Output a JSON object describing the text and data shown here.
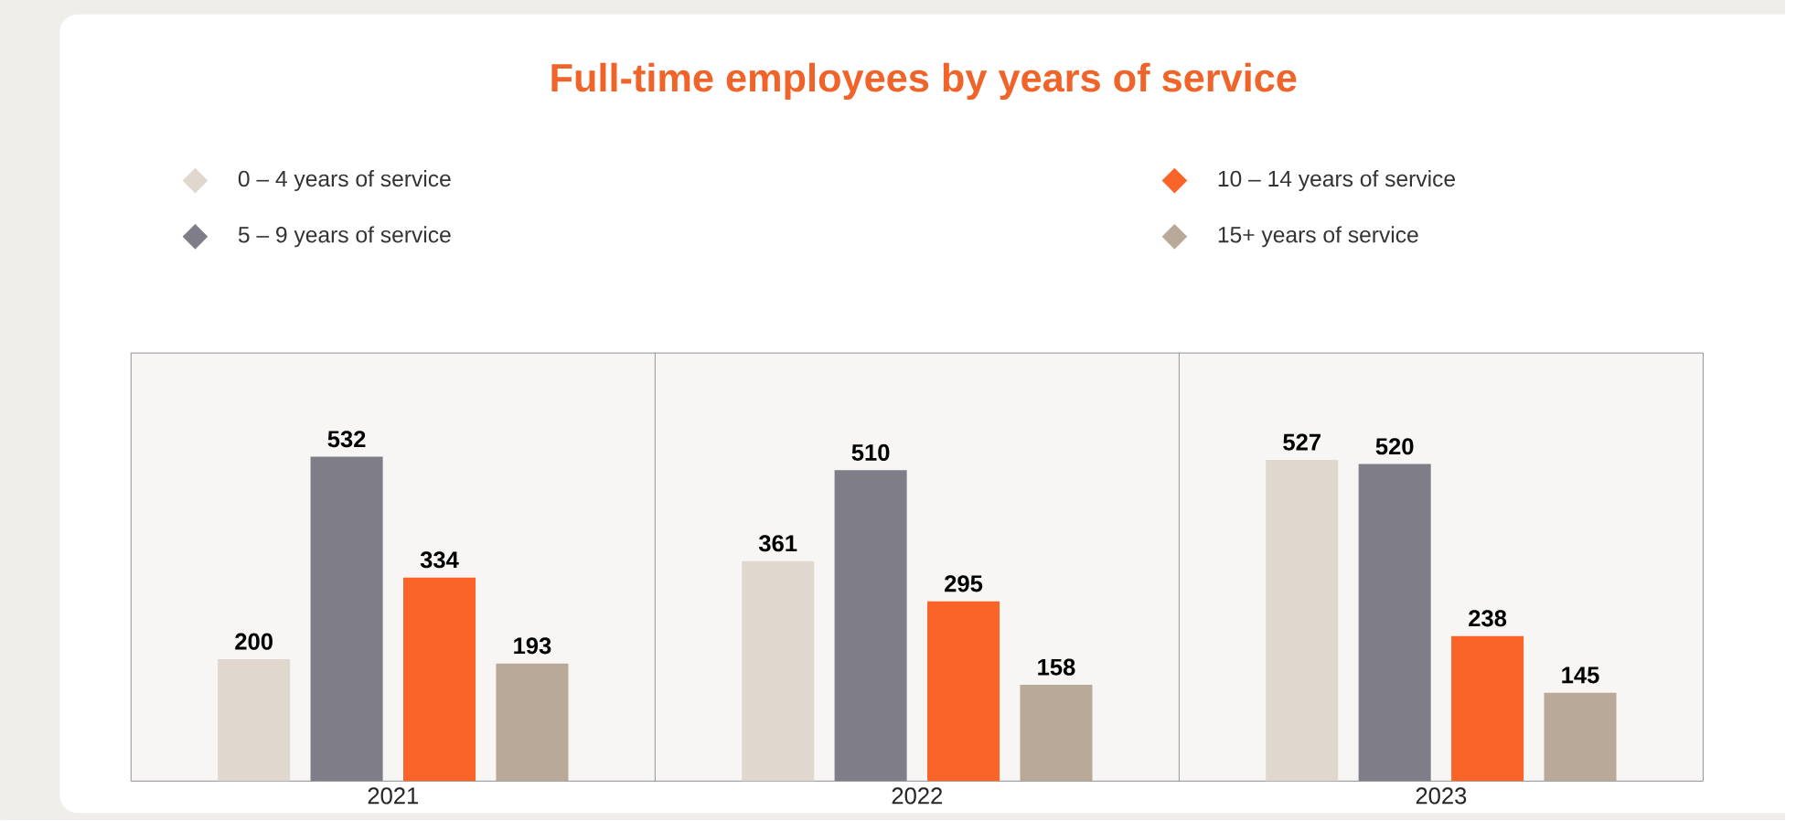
{
  "chart_data": {
    "type": "bar",
    "title": "Full-time employees by years of service",
    "categories": [
      "2021",
      "2022",
      "2023"
    ],
    "series": [
      {
        "name": "0 – 4 years of service",
        "color": "#e0d8ce",
        "values": [
          200,
          361,
          527
        ]
      },
      {
        "name": "5 – 9 years of service",
        "color": "#7f7e88",
        "values": [
          532,
          510,
          520
        ]
      },
      {
        "name": "10 – 14 years of service",
        "color": "#fb6428",
        "values": [
          334,
          295,
          238
        ]
      },
      {
        "name": "15+ years of service",
        "color": "#b9a999",
        "values": [
          193,
          158,
          145
        ]
      }
    ],
    "data_labels": true,
    "legend": "top",
    "grid": false
  }
}
